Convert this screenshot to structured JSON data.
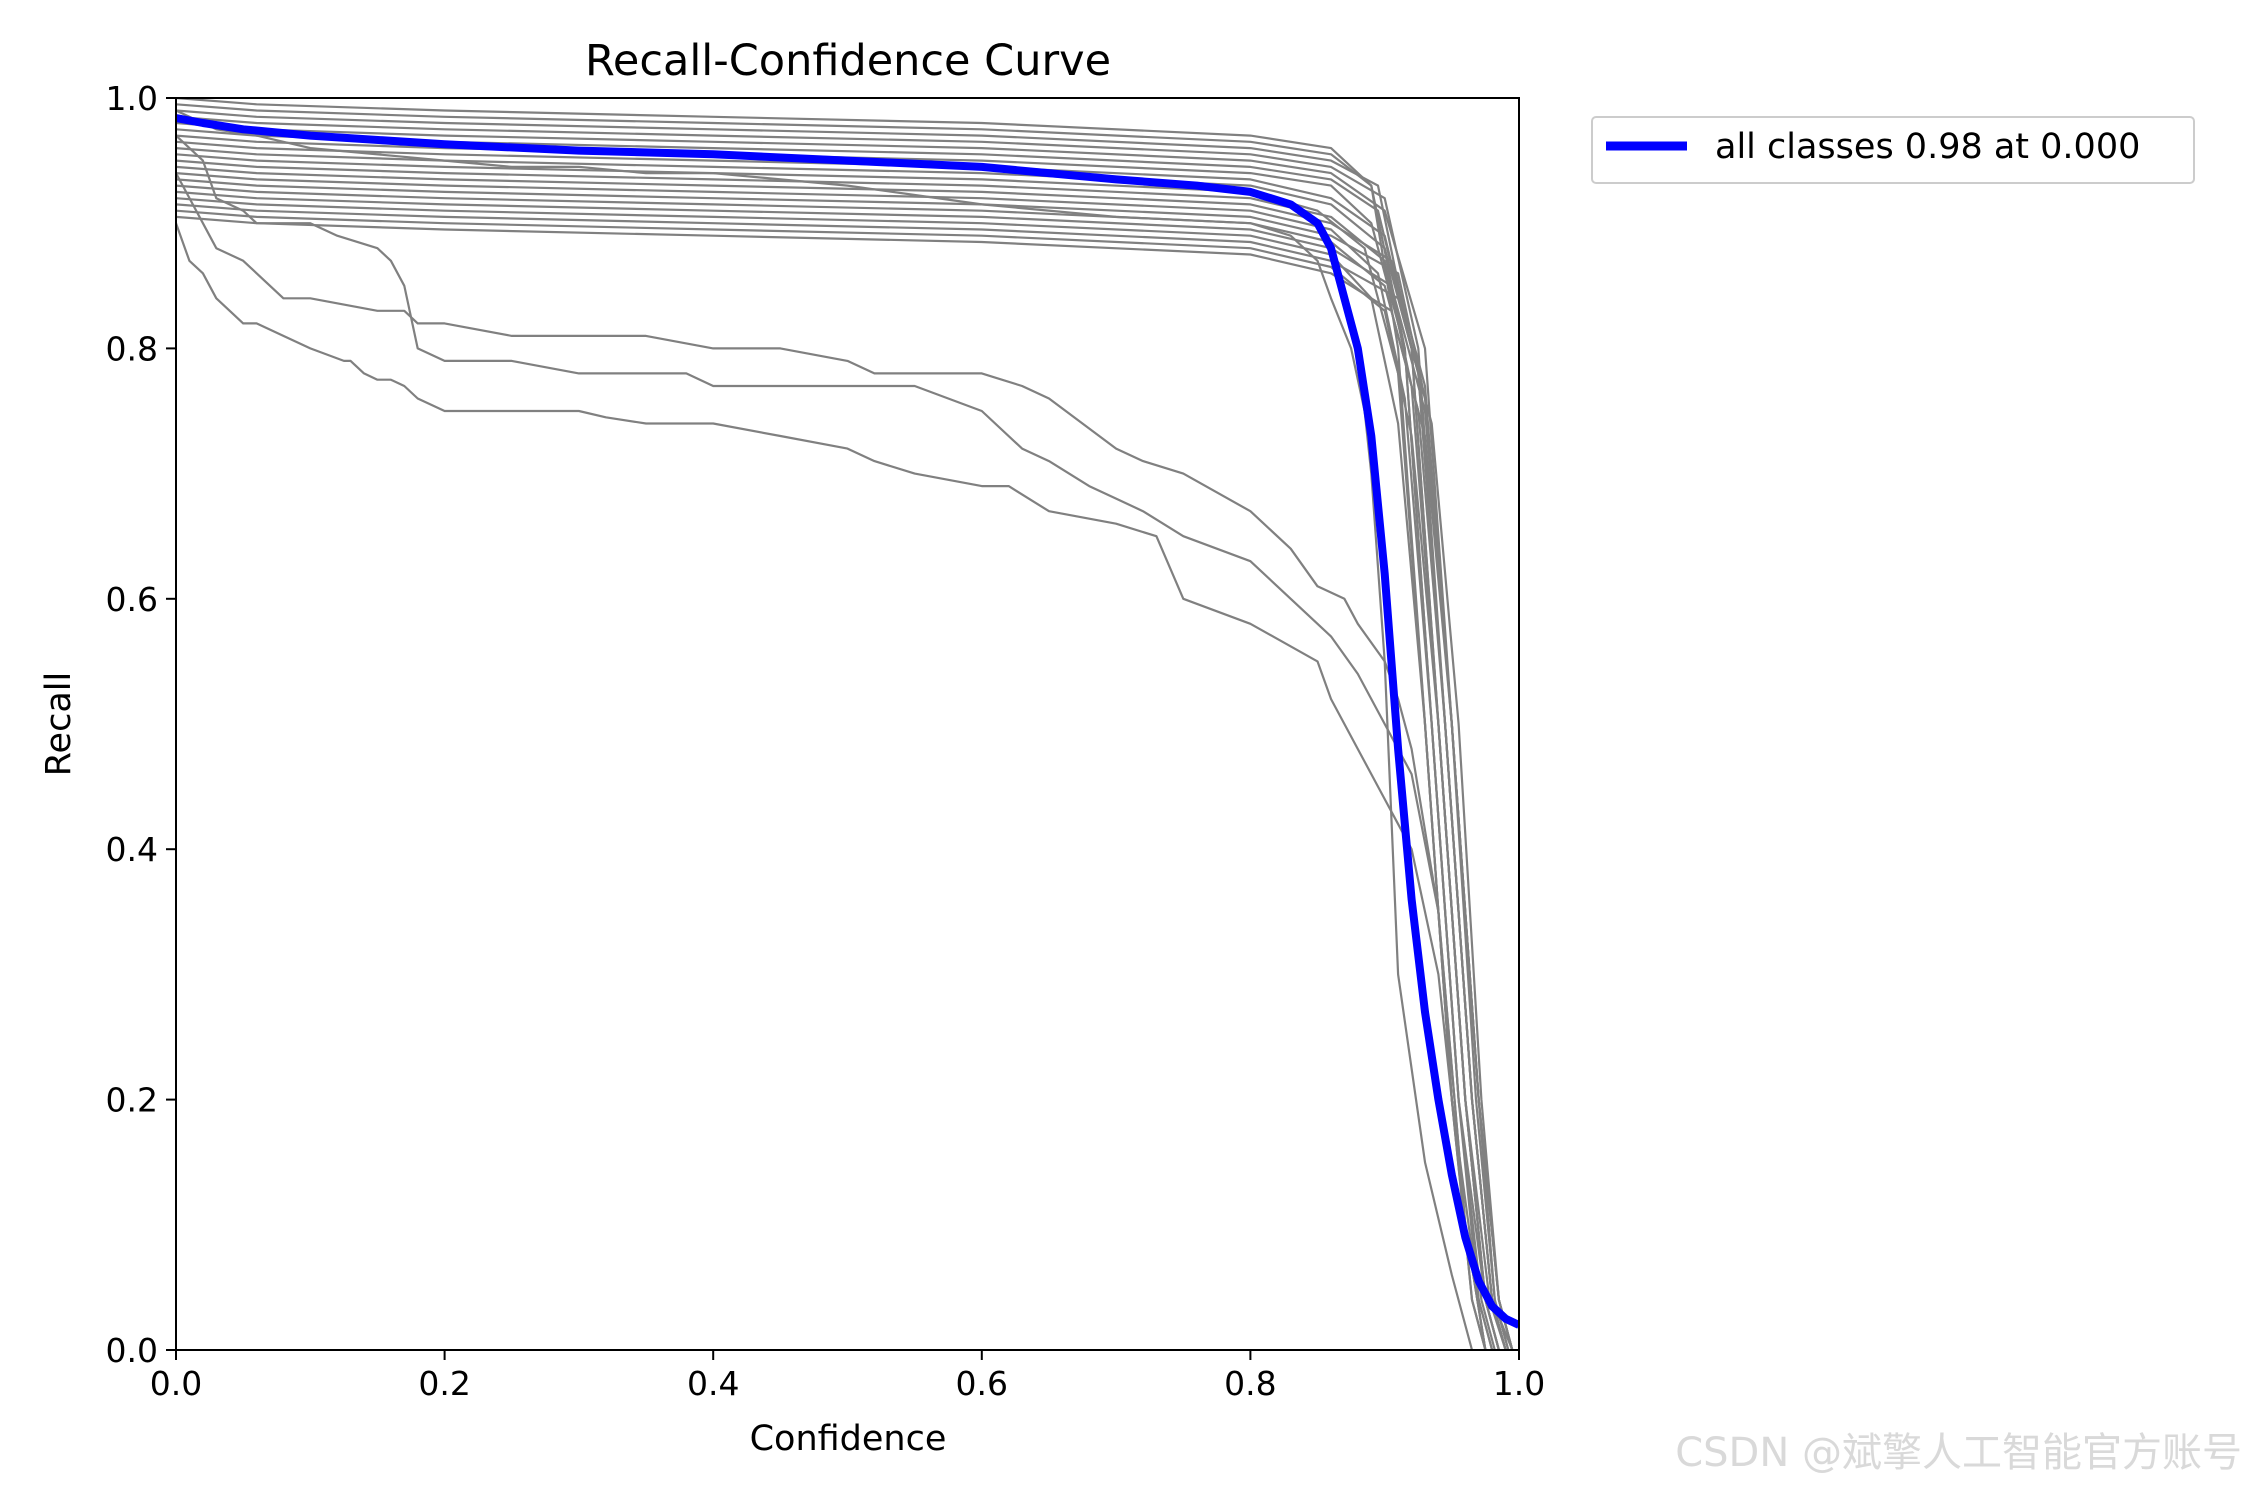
{
  "chart_data": {
    "type": "line",
    "title": "Recall-Confidence Curve",
    "xlabel": "Confidence",
    "ylabel": "Recall",
    "xlim": [
      0,
      1
    ],
    "ylim": [
      0,
      1
    ],
    "xticks": [
      "0.0",
      "0.2",
      "0.4",
      "0.6",
      "0.8",
      "1.0"
    ],
    "yticks": [
      "0.0",
      "0.2",
      "0.4",
      "0.6",
      "0.8",
      "1.0"
    ],
    "grid": false,
    "legend_position": "outside-top-right",
    "class_series_color": "#808080",
    "class_series": [
      {
        "x": [
          0,
          0.06,
          0.2,
          0.4,
          0.6,
          0.8,
          0.86,
          0.89,
          0.91,
          0.93,
          0.95,
          0.97,
          0.98
        ],
        "y": [
          1,
          0.995,
          0.99,
          0.985,
          0.98,
          0.97,
          0.96,
          0.93,
          0.8,
          0.5,
          0.2,
          0.04,
          0
        ]
      },
      {
        "x": [
          0,
          0.06,
          0.2,
          0.4,
          0.6,
          0.8,
          0.86,
          0.89,
          0.915,
          0.935,
          0.955,
          0.975,
          0.985
        ],
        "y": [
          0.995,
          0.99,
          0.985,
          0.98,
          0.975,
          0.965,
          0.955,
          0.93,
          0.8,
          0.5,
          0.2,
          0.04,
          0
        ]
      },
      {
        "x": [
          0,
          0.06,
          0.2,
          0.4,
          0.6,
          0.8,
          0.86,
          0.895,
          0.92,
          0.94,
          0.96,
          0.978,
          0.99
        ],
        "y": [
          0.99,
          0.985,
          0.98,
          0.975,
          0.97,
          0.96,
          0.95,
          0.93,
          0.8,
          0.5,
          0.2,
          0.04,
          0
        ]
      },
      {
        "x": [
          0,
          0.06,
          0.2,
          0.4,
          0.6,
          0.8,
          0.86,
          0.9,
          0.925,
          0.945,
          0.965,
          0.98,
          0.99
        ],
        "y": [
          0.985,
          0.98,
          0.975,
          0.97,
          0.965,
          0.955,
          0.945,
          0.92,
          0.8,
          0.5,
          0.2,
          0.04,
          0
        ]
      },
      {
        "x": [
          0,
          0.06,
          0.2,
          0.4,
          0.6,
          0.8,
          0.86,
          0.9,
          0.93,
          0.95,
          0.97,
          0.985,
          0.995
        ],
        "y": [
          0.98,
          0.975,
          0.97,
          0.965,
          0.96,
          0.95,
          0.94,
          0.91,
          0.8,
          0.5,
          0.2,
          0.04,
          0
        ]
      },
      {
        "x": [
          0,
          0.06,
          0.2,
          0.4,
          0.6,
          0.8,
          0.86,
          0.895,
          0.92,
          0.94,
          0.96,
          0.975,
          0.985
        ],
        "y": [
          0.975,
          0.97,
          0.965,
          0.96,
          0.955,
          0.945,
          0.935,
          0.91,
          0.8,
          0.5,
          0.2,
          0.04,
          0
        ]
      },
      {
        "x": [
          0,
          0.06,
          0.2,
          0.4,
          0.6,
          0.8,
          0.86,
          0.89,
          0.915,
          0.935,
          0.955,
          0.972,
          0.982
        ],
        "y": [
          0.97,
          0.965,
          0.96,
          0.955,
          0.95,
          0.94,
          0.93,
          0.9,
          0.8,
          0.5,
          0.2,
          0.04,
          0
        ]
      },
      {
        "x": [
          0,
          0.06,
          0.2,
          0.4,
          0.6,
          0.8,
          0.86,
          0.9,
          0.925,
          0.945,
          0.965,
          0.98,
          0.99
        ],
        "y": [
          0.965,
          0.96,
          0.955,
          0.95,
          0.945,
          0.935,
          0.92,
          0.89,
          0.78,
          0.5,
          0.2,
          0.04,
          0
        ]
      },
      {
        "x": [
          0,
          0.06,
          0.2,
          0.4,
          0.6,
          0.8,
          0.86,
          0.9,
          0.925,
          0.945,
          0.965,
          0.98,
          0.995
        ],
        "y": [
          0.96,
          0.955,
          0.95,
          0.945,
          0.94,
          0.93,
          0.915,
          0.88,
          0.78,
          0.5,
          0.2,
          0.04,
          0
        ]
      },
      {
        "x": [
          0,
          0.06,
          0.2,
          0.4,
          0.6,
          0.8,
          0.85,
          0.885,
          0.91,
          0.93,
          0.95,
          0.965,
          0.975
        ],
        "y": [
          0.955,
          0.95,
          0.945,
          0.94,
          0.935,
          0.925,
          0.91,
          0.88,
          0.78,
          0.5,
          0.2,
          0.04,
          0
        ]
      },
      {
        "x": [
          0,
          0.06,
          0.2,
          0.4,
          0.6,
          0.8,
          0.86,
          0.9,
          0.92,
          0.94,
          0.96,
          0.975,
          0.985
        ],
        "y": [
          0.95,
          0.945,
          0.94,
          0.935,
          0.93,
          0.92,
          0.905,
          0.87,
          0.77,
          0.5,
          0.2,
          0.04,
          0
        ]
      },
      {
        "x": [
          0,
          0.06,
          0.2,
          0.4,
          0.6,
          0.8,
          0.86,
          0.905,
          0.93,
          0.95,
          0.97,
          0.985,
          0.995
        ],
        "y": [
          0.945,
          0.94,
          0.935,
          0.93,
          0.925,
          0.915,
          0.9,
          0.87,
          0.77,
          0.5,
          0.2,
          0.04,
          0
        ]
      },
      {
        "x": [
          0,
          0.06,
          0.2,
          0.4,
          0.6,
          0.8,
          0.86,
          0.895,
          0.915,
          0.935,
          0.955,
          0.97,
          0.98
        ],
        "y": [
          0.94,
          0.935,
          0.93,
          0.925,
          0.92,
          0.91,
          0.895,
          0.86,
          0.76,
          0.5,
          0.2,
          0.04,
          0
        ]
      },
      {
        "x": [
          0,
          0.06,
          0.2,
          0.4,
          0.6,
          0.8,
          0.86,
          0.91,
          0.93,
          0.95,
          0.97,
          0.985,
          0.995
        ],
        "y": [
          0.935,
          0.93,
          0.925,
          0.92,
          0.915,
          0.905,
          0.89,
          0.86,
          0.76,
          0.5,
          0.2,
          0.04,
          0
        ]
      },
      {
        "x": [
          0,
          0.06,
          0.2,
          0.4,
          0.6,
          0.8,
          0.86,
          0.9,
          0.925,
          0.945,
          0.965,
          0.98,
          0.99
        ],
        "y": [
          0.93,
          0.925,
          0.92,
          0.915,
          0.91,
          0.9,
          0.885,
          0.85,
          0.75,
          0.5,
          0.2,
          0.04,
          0
        ]
      },
      {
        "x": [
          0,
          0.06,
          0.2,
          0.4,
          0.6,
          0.8,
          0.86,
          0.905,
          0.93,
          0.95,
          0.97,
          0.982,
          0.992
        ],
        "y": [
          0.925,
          0.92,
          0.915,
          0.91,
          0.905,
          0.895,
          0.88,
          0.85,
          0.75,
          0.5,
          0.2,
          0.04,
          0
        ]
      },
      {
        "x": [
          0,
          0.06,
          0.2,
          0.4,
          0.6,
          0.8,
          0.86,
          0.89,
          0.91,
          0.93,
          0.95,
          0.965,
          0.975
        ],
        "y": [
          0.92,
          0.915,
          0.91,
          0.905,
          0.9,
          0.89,
          0.875,
          0.84,
          0.74,
          0.5,
          0.2,
          0.04,
          0
        ]
      },
      {
        "x": [
          0,
          0.06,
          0.2,
          0.4,
          0.6,
          0.8,
          0.86,
          0.91,
          0.935,
          0.955,
          0.972,
          0.985,
          0.995
        ],
        "y": [
          0.915,
          0.91,
          0.905,
          0.9,
          0.895,
          0.885,
          0.87,
          0.84,
          0.74,
          0.5,
          0.2,
          0.04,
          0
        ]
      },
      {
        "x": [
          0,
          0.06,
          0.2,
          0.4,
          0.6,
          0.8,
          0.86,
          0.9,
          0.92,
          0.94,
          0.96,
          0.975,
          0.985
        ],
        "y": [
          0.91,
          0.905,
          0.9,
          0.895,
          0.89,
          0.88,
          0.865,
          0.83,
          0.73,
          0.5,
          0.2,
          0.04,
          0
        ]
      },
      {
        "x": [
          0,
          0.06,
          0.2,
          0.4,
          0.6,
          0.8,
          0.86,
          0.905,
          0.93,
          0.95,
          0.968,
          0.982,
          0.992
        ],
        "y": [
          0.905,
          0.9,
          0.895,
          0.89,
          0.885,
          0.875,
          0.86,
          0.83,
          0.73,
          0.5,
          0.2,
          0.04,
          0
        ]
      },
      {
        "x": [
          0,
          0.03,
          0.06,
          0.1,
          0.2,
          0.25,
          0.3,
          0.35,
          0.4,
          0.5,
          0.6,
          0.7,
          0.8,
          0.83,
          0.85,
          0.86,
          0.875,
          0.885,
          0.89,
          0.9,
          0.91,
          0.93,
          0.95,
          0.965
        ],
        "y": [
          0.99,
          0.975,
          0.97,
          0.96,
          0.95,
          0.945,
          0.945,
          0.94,
          0.94,
          0.93,
          0.915,
          0.905,
          0.9,
          0.89,
          0.87,
          0.84,
          0.8,
          0.75,
          0.7,
          0.55,
          0.3,
          0.15,
          0.06,
          0
        ]
      },
      {
        "x": [
          0,
          0.01,
          0.02,
          0.03,
          0.04,
          0.05,
          0.06,
          0.08,
          0.1,
          0.125,
          0.13,
          0.14,
          0.15,
          0.16,
          0.17,
          0.18,
          0.2,
          0.25,
          0.3,
          0.32,
          0.35,
          0.38,
          0.4,
          0.45,
          0.5,
          0.52,
          0.55,
          0.6,
          0.62,
          0.65,
          0.7,
          0.73,
          0.75,
          0.8,
          0.85,
          0.86,
          0.87,
          0.88,
          0.89,
          0.9,
          0.92,
          0.94,
          0.96,
          0.975
        ],
        "y": [
          0.9,
          0.87,
          0.86,
          0.84,
          0.83,
          0.82,
          0.82,
          0.81,
          0.8,
          0.79,
          0.79,
          0.78,
          0.775,
          0.775,
          0.77,
          0.76,
          0.75,
          0.75,
          0.75,
          0.745,
          0.74,
          0.74,
          0.74,
          0.73,
          0.72,
          0.71,
          0.7,
          0.69,
          0.69,
          0.67,
          0.66,
          0.65,
          0.6,
          0.58,
          0.55,
          0.52,
          0.5,
          0.48,
          0.46,
          0.44,
          0.4,
          0.3,
          0.1,
          0
        ]
      },
      {
        "x": [
          0,
          0.02,
          0.03,
          0.05,
          0.06,
          0.07,
          0.08,
          0.1,
          0.15,
          0.16,
          0.17,
          0.18,
          0.2,
          0.25,
          0.3,
          0.35,
          0.4,
          0.45,
          0.5,
          0.52,
          0.55,
          0.6,
          0.63,
          0.65,
          0.7,
          0.72,
          0.75,
          0.8,
          0.83,
          0.85,
          0.87,
          0.88,
          0.9,
          0.91,
          0.92,
          0.94,
          0.96,
          0.975
        ],
        "y": [
          0.94,
          0.9,
          0.88,
          0.87,
          0.86,
          0.85,
          0.84,
          0.84,
          0.83,
          0.83,
          0.83,
          0.82,
          0.82,
          0.81,
          0.81,
          0.81,
          0.8,
          0.8,
          0.79,
          0.78,
          0.78,
          0.78,
          0.77,
          0.76,
          0.72,
          0.71,
          0.7,
          0.67,
          0.64,
          0.61,
          0.6,
          0.58,
          0.55,
          0.52,
          0.48,
          0.35,
          0.1,
          0
        ]
      },
      {
        "x": [
          0,
          0.02,
          0.03,
          0.05,
          0.06,
          0.1,
          0.12,
          0.15,
          0.16,
          0.17,
          0.18,
          0.2,
          0.25,
          0.3,
          0.35,
          0.38,
          0.4,
          0.45,
          0.5,
          0.55,
          0.6,
          0.63,
          0.65,
          0.68,
          0.7,
          0.72,
          0.75,
          0.8,
          0.82,
          0.84,
          0.86,
          0.88,
          0.9,
          0.92,
          0.94,
          0.96,
          0.975
        ],
        "y": [
          0.97,
          0.95,
          0.92,
          0.91,
          0.9,
          0.9,
          0.89,
          0.88,
          0.87,
          0.85,
          0.8,
          0.79,
          0.79,
          0.78,
          0.78,
          0.78,
          0.77,
          0.77,
          0.77,
          0.77,
          0.75,
          0.72,
          0.71,
          0.69,
          0.68,
          0.67,
          0.65,
          0.63,
          0.61,
          0.59,
          0.57,
          0.54,
          0.5,
          0.46,
          0.35,
          0.1,
          0
        ]
      }
    ],
    "series": [
      {
        "name": "all classes 0.98 at 0.000",
        "color": "#0000ff",
        "x": [
          0,
          0.02,
          0.05,
          0.1,
          0.2,
          0.3,
          0.4,
          0.5,
          0.6,
          0.7,
          0.76,
          0.8,
          0.83,
          0.85,
          0.86,
          0.87,
          0.88,
          0.89,
          0.9,
          0.91,
          0.92,
          0.93,
          0.94,
          0.95,
          0.96,
          0.97,
          0.98,
          0.99,
          1.0
        ],
        "y": [
          0.984,
          0.98,
          0.975,
          0.97,
          0.963,
          0.958,
          0.955,
          0.95,
          0.945,
          0.935,
          0.93,
          0.925,
          0.915,
          0.9,
          0.88,
          0.84,
          0.8,
          0.73,
          0.62,
          0.48,
          0.36,
          0.27,
          0.2,
          0.14,
          0.09,
          0.055,
          0.035,
          0.025,
          0.02
        ]
      }
    ]
  },
  "watermark": "CSDN @斌擎人工智能官方账号"
}
